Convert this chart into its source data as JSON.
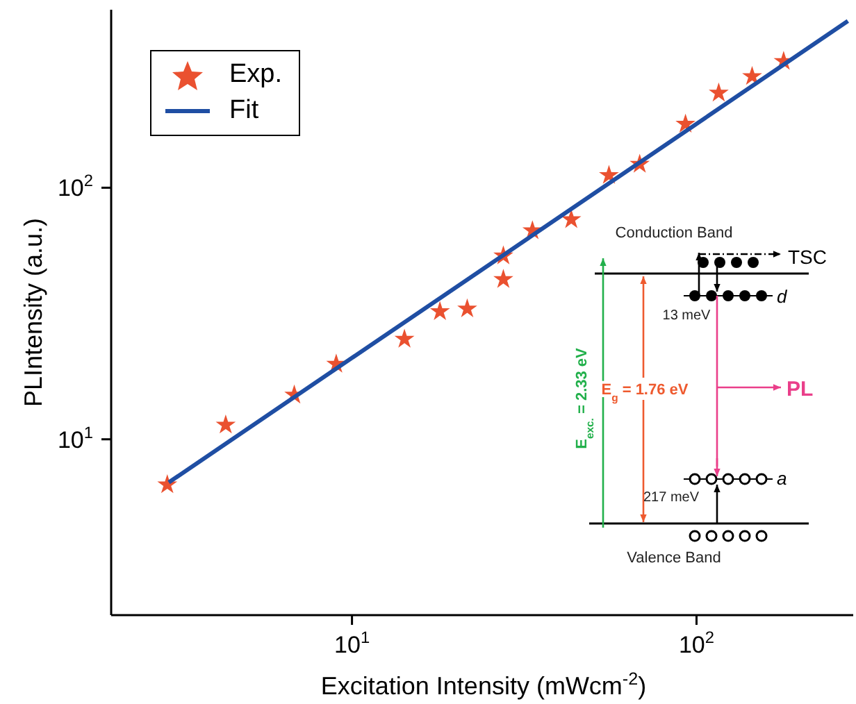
{
  "chart_data": {
    "type": "scatter",
    "xlabel": "Excitation Intensity (mWcm$^{-2}$)",
    "ylabel": "PLIntensity (a.u.)",
    "log": "xy",
    "xlim": [
      2,
      285
    ],
    "ylim": [
      2,
      510
    ],
    "xticks": [
      {
        "value": 10,
        "label": "10$^{1}$"
      },
      {
        "value": 100,
        "label": "10$^{2}$"
      }
    ],
    "yticks": [
      {
        "value": 10,
        "label": "10$^{1}$"
      },
      {
        "value": 100,
        "label": "10$^{2}$"
      }
    ],
    "legend": "top left",
    "series": [
      {
        "name": "Exp.",
        "marker": "star",
        "color": "#ea5130",
        "x": [
          2.91,
          4.3,
          6.8,
          9.0,
          14.2,
          18.0,
          21.6,
          27.5,
          27.5,
          33.4,
          43.3,
          55.7,
          68.4,
          92.9,
          116,
          145,
          179
        ],
        "values": [
          6.6,
          11.4,
          15.0,
          19.9,
          25.0,
          32.2,
          33.0,
          43.2,
          53.6,
          67.5,
          74.7,
          112,
          124,
          179,
          238,
          277,
          318
        ]
      },
      {
        "name": "Fit",
        "type": "line",
        "marker": "none",
        "color": "#1f4ea3",
        "x": [
          2.94,
          275
        ],
        "values": [
          6.74,
          460
        ]
      }
    ],
    "annotations": [
      "Conduction Band",
      "TSC",
      "d",
      "13 meV",
      "E$_{exc.}$ = 2.33 eV",
      "E$_{g}$ = 1.76 eV",
      "PL",
      "a",
      "217 meV",
      "Valence Band"
    ]
  }
}
